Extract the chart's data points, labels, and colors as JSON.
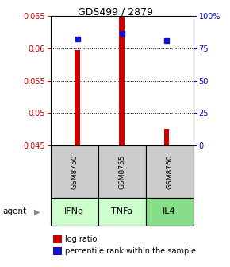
{
  "title": "GDS499 / 2879",
  "samples": [
    "IFNg",
    "TNFa",
    "IL4"
  ],
  "sample_ids": [
    "GSM8750",
    "GSM8755",
    "GSM8760"
  ],
  "log_ratios": [
    0.0597,
    0.0648,
    0.0476
  ],
  "baseline": 0.045,
  "percentile_ranks": [
    82,
    86.5,
    81
  ],
  "ylim_left": [
    0.045,
    0.065
  ],
  "ylim_right": [
    0,
    100
  ],
  "yticks_left": [
    0.045,
    0.05,
    0.055,
    0.06,
    0.065
  ],
  "yticks_right": [
    0,
    25,
    50,
    75,
    100
  ],
  "ytick_labels_left": [
    "0.045",
    "0.05",
    "0.055",
    "0.06",
    "0.065"
  ],
  "ytick_labels_right": [
    "0",
    "25",
    "50",
    "75",
    "100%"
  ],
  "bar_color": "#cc0000",
  "dot_color": "#1111cc",
  "bar_width": 0.12,
  "agent_colors": [
    "#ccffcc",
    "#ccffcc",
    "#88dd88"
  ],
  "sample_bg_color": "#cccccc",
  "legend_bar_label": "log ratio",
  "legend_dot_label": "percentile rank within the sample",
  "background_color": "#ffffff"
}
